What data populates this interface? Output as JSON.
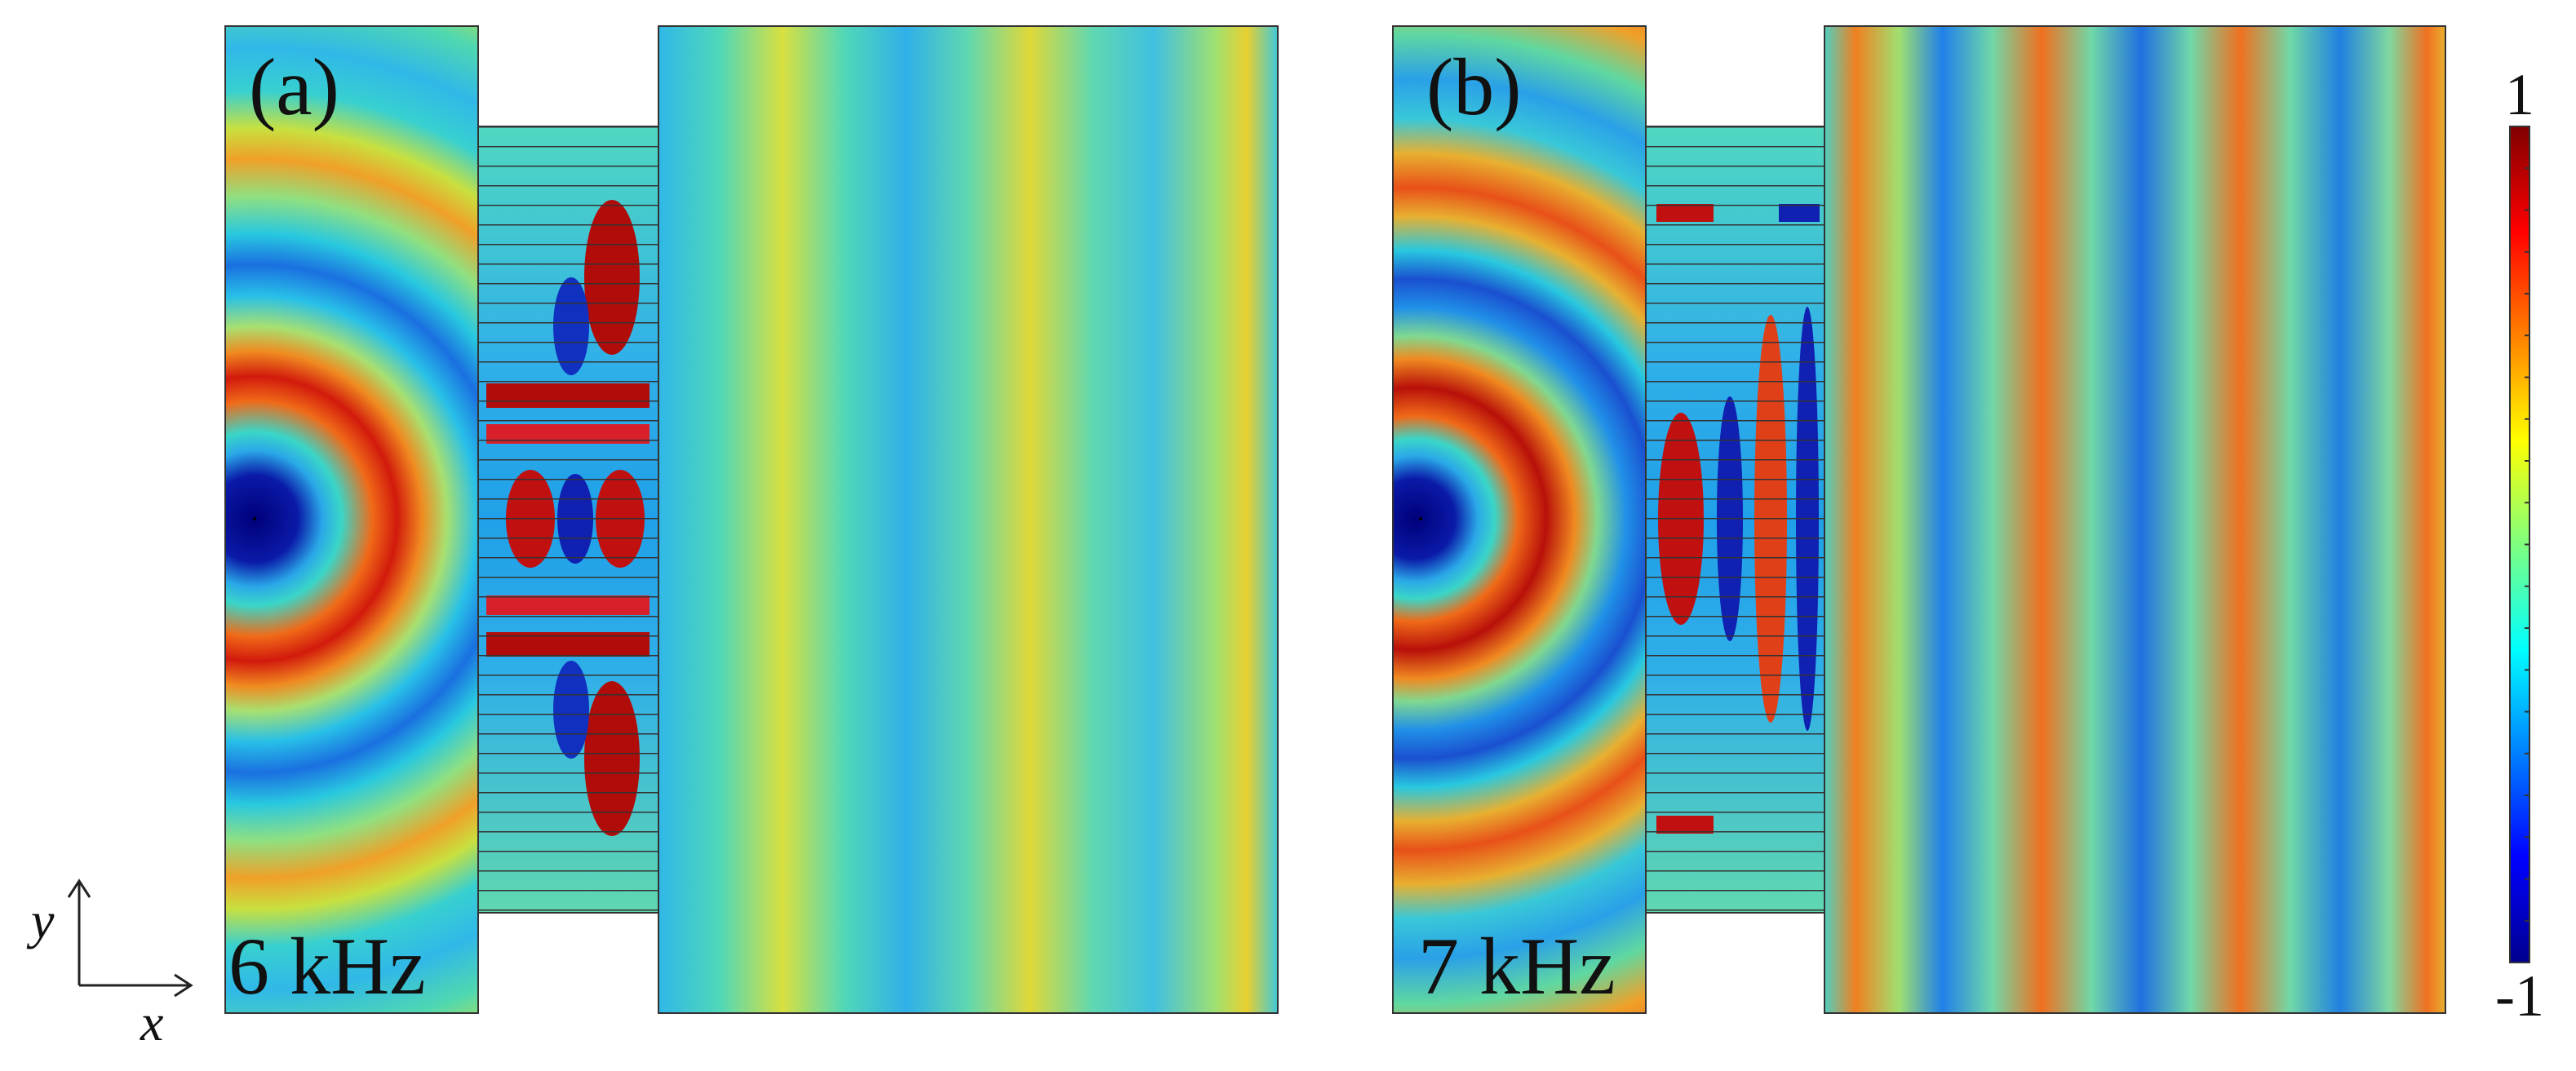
{
  "panels": [
    {
      "label": "(a)",
      "frequency": "6 kHz"
    },
    {
      "label": "(b)",
      "frequency": "7 kHz"
    }
  ],
  "colorbar": {
    "max": 1,
    "min": -1
  },
  "axes": {
    "x": "x",
    "y": "y"
  }
}
